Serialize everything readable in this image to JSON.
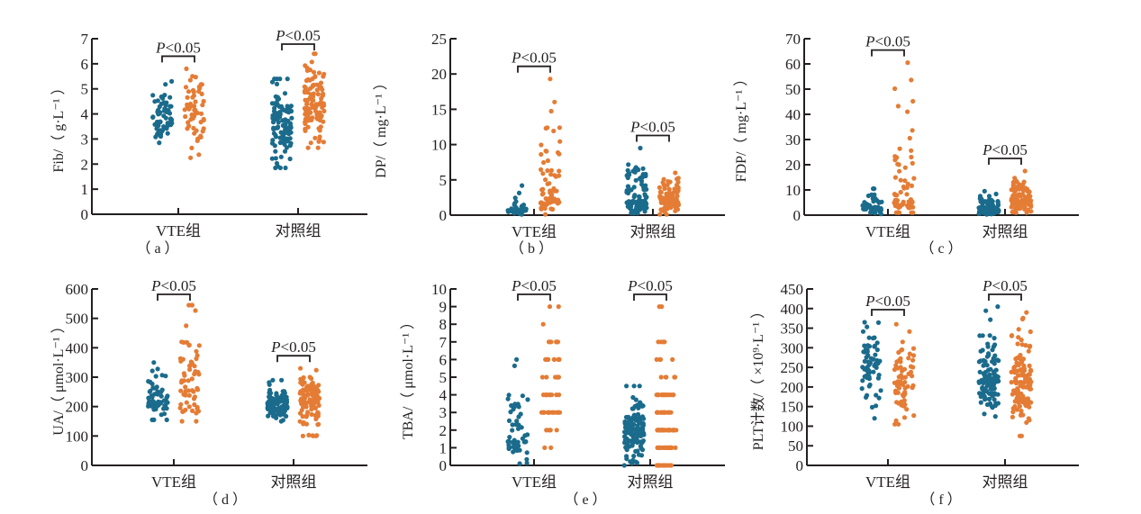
{
  "colors": {
    "vte": "#1a6b8c",
    "control": "#e57c35",
    "axis": "#231f20"
  },
  "chart_data": [
    {
      "id": "a",
      "type": "scatter",
      "panel_label": "（ a ）",
      "ylabel": "Fib/（ g·L⁻¹ ）",
      "ylim": [
        0,
        7
      ],
      "yticks": [
        0,
        1,
        2,
        3,
        4,
        5,
        6,
        7
      ],
      "categories": [
        "VTE组",
        "对照组"
      ],
      "series_colors": [
        "vte",
        "control"
      ],
      "groups": [
        {
          "category": "VTE组",
          "series": [
            {
              "name": "vte",
              "range": [
                2.85,
                5.3
              ],
              "median": 3.85,
              "n": 60
            },
            {
              "name": "control",
              "range": [
                2.25,
                5.8
              ],
              "median": 4.1,
              "n": 60
            }
          ],
          "significance": "P<0.05"
        },
        {
          "category": "对照组",
          "series": [
            {
              "name": "vte",
              "range": [
                1.85,
                5.4
              ],
              "median": 3.7,
              "n": 110
            },
            {
              "name": "control",
              "range": [
                2.65,
                6.4
              ],
              "median": 4.4,
              "n": 110
            }
          ],
          "significance": "P<0.05"
        }
      ]
    },
    {
      "id": "b",
      "type": "scatter",
      "panel_label": "（ b ）",
      "ylabel": "DP/（ mg·L⁻¹ ）",
      "ylim": [
        0,
        25
      ],
      "yticks": [
        0,
        5,
        10,
        15,
        20,
        25
      ],
      "categories": [
        "VTE组",
        "对照组"
      ],
      "series_colors": [
        "vte",
        "control"
      ],
      "groups": [
        {
          "category": "VTE组",
          "series": [
            {
              "name": "vte",
              "range": [
                0.1,
                4.2
              ],
              "median": 0.8,
              "n": 40
            },
            {
              "name": "control",
              "range": [
                0.1,
                19.3
              ],
              "median": 2.5,
              "n": 70
            }
          ],
          "significance": "P<0.05"
        },
        {
          "category": "对照组",
          "series": [
            {
              "name": "vte",
              "range": [
                0.3,
                9.5
              ],
              "median": 2.0,
              "n": 110
            },
            {
              "name": "control",
              "range": [
                0.1,
                6.0
              ],
              "median": 2.4,
              "n": 110
            }
          ],
          "significance": "P<0.05"
        }
      ]
    },
    {
      "id": "c",
      "type": "scatter",
      "panel_label": "（ c ）",
      "ylabel": "FDP/（ mg·L⁻¹ ）",
      "ylim": [
        0,
        70
      ],
      "yticks": [
        0,
        10,
        20,
        30,
        40,
        50,
        60,
        70
      ],
      "categories": [
        "VTE组",
        "对照组"
      ],
      "series_colors": [
        "vte",
        "control"
      ],
      "groups": [
        {
          "category": "VTE组",
          "series": [
            {
              "name": "vte",
              "range": [
                0.5,
                10.5
              ],
              "median": 3.0,
              "n": 45
            },
            {
              "name": "control",
              "range": [
                1.0,
                60.5
              ],
              "median": 6.0,
              "n": 70
            }
          ],
          "significance": "P<0.05"
        },
        {
          "category": "对照组",
          "series": [
            {
              "name": "vte",
              "range": [
                0.3,
                9.5
              ],
              "median": 2.0,
              "n": 100
            },
            {
              "name": "control",
              "range": [
                1.0,
                17.5
              ],
              "median": 6.0,
              "n": 110
            }
          ],
          "significance": "P<0.05"
        }
      ]
    },
    {
      "id": "d",
      "type": "scatter",
      "panel_label": "（ d ）",
      "ylabel": "UA/（ μmol·L⁻¹ ）",
      "ylim": [
        0,
        600
      ],
      "yticks": [
        0,
        100,
        200,
        300,
        400,
        500,
        600
      ],
      "categories": [
        "VTE组",
        "对照组"
      ],
      "series_colors": [
        "vte",
        "control"
      ],
      "groups": [
        {
          "category": "VTE组",
          "series": [
            {
              "name": "vte",
              "range": [
                155,
                350
              ],
              "median": 225,
              "n": 60
            },
            {
              "name": "control",
              "range": [
                150,
                545
              ],
              "median": 255,
              "n": 65
            }
          ],
          "significance": "P<0.05"
        },
        {
          "category": "对照组",
          "series": [
            {
              "name": "vte",
              "range": [
                150,
                290
              ],
              "median": 205,
              "n": 110
            },
            {
              "name": "control",
              "range": [
                100,
                330
              ],
              "median": 230,
              "n": 120
            }
          ],
          "significance": "P<0.05"
        }
      ]
    },
    {
      "id": "e",
      "type": "scatter",
      "panel_label": "（ e ）",
      "ylabel": "TBA/（ μmol·L⁻¹ ）",
      "ylim": [
        0,
        10
      ],
      "yticks": [
        0,
        1,
        2,
        3,
        4,
        5,
        6,
        7,
        8,
        9,
        10
      ],
      "categories": [
        "VTE组",
        "对照组"
      ],
      "series_colors": [
        "vte",
        "control"
      ],
      "groups": [
        {
          "category": "VTE组",
          "series": [
            {
              "name": "vte",
              "range": [
                0.1,
                6.0
              ],
              "median": 1.4,
              "n": 55
            },
            {
              "name": "control",
              "range": [
                1,
                9
              ],
              "median": 4,
              "n": 60,
              "discrete": true
            }
          ],
          "significance": "P<0.05"
        },
        {
          "category": "对照组",
          "series": [
            {
              "name": "vte",
              "range": [
                0.0,
                4.5
              ],
              "median": 1.9,
              "n": 120
            },
            {
              "name": "control",
              "range": [
                0,
                9
              ],
              "median": 2,
              "n": 110,
              "discrete": true
            }
          ],
          "significance": "P<0.05"
        }
      ]
    },
    {
      "id": "f",
      "type": "scatter",
      "panel_label": "（ f ）",
      "ylabel": "PLT计数/（ ×10⁹·L⁻¹ ）",
      "ylim": [
        0,
        450
      ],
      "yticks": [
        0,
        50,
        100,
        150,
        200,
        250,
        300,
        350,
        400,
        450
      ],
      "categories": [
        "VTE组",
        "对照组"
      ],
      "series_colors": [
        "vte",
        "control"
      ],
      "groups": [
        {
          "category": "VTE组",
          "series": [
            {
              "name": "vte",
              "range": [
                120,
                365
              ],
              "median": 245,
              "n": 65
            },
            {
              "name": "control",
              "range": [
                105,
                360
              ],
              "median": 215,
              "n": 65
            }
          ],
          "significance": "P<0.05"
        },
        {
          "category": "对照组",
          "series": [
            {
              "name": "vte",
              "range": [
                125,
                405
              ],
              "median": 220,
              "n": 115
            },
            {
              "name": "control",
              "range": [
                75,
                390
              ],
              "median": 210,
              "n": 125
            }
          ],
          "significance": "P<0.05"
        }
      ]
    }
  ]
}
